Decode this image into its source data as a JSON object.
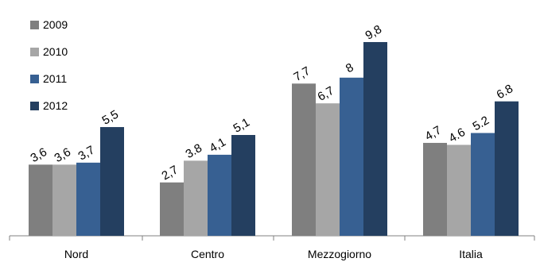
{
  "chart_data": {
    "type": "bar",
    "title": "",
    "xlabel": "",
    "ylabel": "",
    "categories": [
      "Nord",
      "Centro",
      "Mezzogiorno",
      "Italia"
    ],
    "series": [
      {
        "name": "2009",
        "color": "#7f7f7f",
        "values": [
          3.6,
          2.7,
          7.7,
          4.7
        ],
        "labels": [
          "3,6",
          "2,7",
          "7,7",
          "4,7"
        ]
      },
      {
        "name": "2010",
        "color": "#a6a6a6",
        "values": [
          3.6,
          3.8,
          6.7,
          4.6
        ],
        "labels": [
          "3,6",
          "3.8",
          "6,7",
          "4.6"
        ]
      },
      {
        "name": "2011",
        "color": "#376092",
        "values": [
          3.7,
          4.1,
          8.0,
          5.2
        ],
        "labels": [
          "3,7",
          "4,1",
          "8",
          "5.2"
        ]
      },
      {
        "name": "2012",
        "color": "#243f60",
        "values": [
          5.5,
          5.1,
          9.8,
          6.8
        ],
        "labels": [
          "5,5",
          "5,1",
          "9,8",
          "6.8"
        ]
      }
    ],
    "ylim": [
      0,
      10
    ],
    "grid": false,
    "legend": "top-left"
  }
}
